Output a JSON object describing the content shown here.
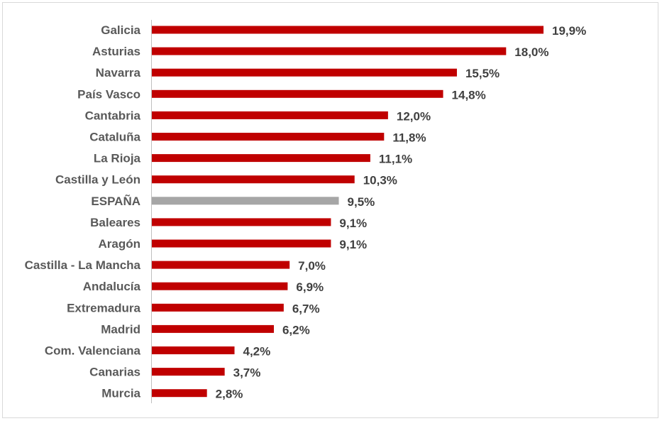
{
  "chart_data": {
    "type": "bar",
    "orientation": "horizontal",
    "title": "",
    "xlabel": "",
    "ylabel": "",
    "categories": [
      "Galicia",
      "Asturias",
      "Navarra",
      "País Vasco",
      "Cantabria",
      "Cataluña",
      "La Rioja",
      "Castilla y León",
      "ESPAÑA",
      "Baleares",
      "Aragón",
      "Castilla - La Mancha",
      "Andalucía",
      "Extremadura",
      "Madrid",
      "Com. Valenciana",
      "Canarias",
      "Murcia"
    ],
    "values": [
      19.9,
      18.0,
      15.5,
      14.8,
      12.0,
      11.8,
      11.1,
      10.3,
      9.5,
      9.1,
      9.1,
      7.0,
      6.9,
      6.7,
      6.2,
      4.2,
      3.7,
      2.8
    ],
    "value_labels": [
      "19,9%",
      "18,0%",
      "15,5%",
      "14,8%",
      "12,0%",
      "11,8%",
      "11,1%",
      "10,3%",
      "9,5%",
      "9,1%",
      "9,1%",
      "7,0%",
      "6,9%",
      "6,7%",
      "6,2%",
      "4,2%",
      "3,7%",
      "2,8%"
    ],
    "xlim": [
      0,
      20
    ],
    "grid": false,
    "legend": "none",
    "colors": {
      "default_bar": "#c00000",
      "highlight_bar": "#a6a6a6",
      "axis": "#bfbfbf"
    },
    "highlight_category": "ESPAÑA"
  }
}
